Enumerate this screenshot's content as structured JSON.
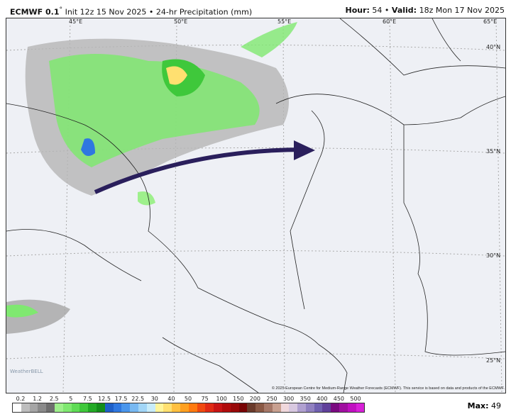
{
  "header": {
    "model": "ECMWF 0.1",
    "degree": "°",
    "init": "Init 12z 15 Nov 2025",
    "separator": "•",
    "product": "24-hr Precipitation (mm)",
    "hour_label": "Hour:",
    "hour": "54",
    "valid_label": "Valid:",
    "valid": "18z Mon 17 Nov 2025"
  },
  "map": {
    "lon_labels": [
      "45°E",
      "50°E",
      "55°E",
      "60°E",
      "65°E"
    ],
    "lat_labels": [
      "40°N",
      "35°N",
      "30°N",
      "25°N"
    ],
    "arrow_color": "#2a1f5c",
    "logo": "WeatherBELL"
  },
  "copyright": "© 2025 European Centre for Medium-Range Weather Forecasts (ECMWF). This service is based on data and products of the ECMWF.",
  "legend": {
    "ticks": [
      "0.2",
      "1.2",
      "2.5",
      "5",
      "7.5",
      "12.5",
      "17.5",
      "22.5",
      "30",
      "40",
      "50",
      "75",
      "100",
      "150",
      "200",
      "250",
      "300",
      "350",
      "400",
      "450",
      "500"
    ],
    "colors": [
      "#ffffff",
      "#bdbdbd",
      "#a5a5a5",
      "#8a8a8a",
      "#6e6e6e",
      "#9ef08c",
      "#7fe870",
      "#5fdc55",
      "#3fc83b",
      "#22a925",
      "#138d1a",
      "#1e5fc8",
      "#2f78e0",
      "#4a96ec",
      "#78b9f2",
      "#a2d6f7",
      "#c8ecfa",
      "#fff59a",
      "#ffe070",
      "#ffc040",
      "#ffa020",
      "#ff7a10",
      "#f04a10",
      "#e02a14",
      "#c81414",
      "#b00c0c",
      "#980808",
      "#780404",
      "#6a3a2a",
      "#8a5844",
      "#a67868",
      "#c8a090",
      "#f0d8dc",
      "#d8c8e0",
      "#b0a0d0",
      "#9080c0",
      "#7060b0",
      "#60409a",
      "#7a0a80",
      "#a010a0",
      "#c010c0",
      "#d820d8"
    ]
  },
  "max_label": "Max:",
  "max_value": "49"
}
